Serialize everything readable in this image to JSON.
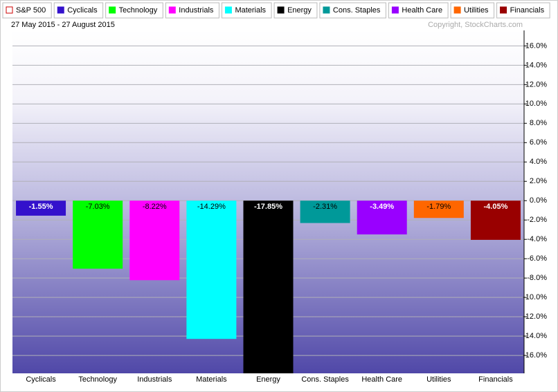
{
  "chart_data": {
    "type": "bar",
    "subtitle": "27 May 2015 - 27 August 2015",
    "credit": "Copyright, StockCharts.com",
    "benchmark": {
      "name": "S&P 500",
      "color": "#cc0000"
    },
    "categories": [
      "Cyclicals",
      "Technology",
      "Industrials",
      "Materials",
      "Energy",
      "Cons. Staples",
      "Health Care",
      "Utilities",
      "Financials"
    ],
    "values": [
      -1.55,
      -7.03,
      -8.22,
      -14.29,
      -17.85,
      -2.31,
      -3.49,
      -1.79,
      -4.05
    ],
    "value_labels": [
      "-1.55%",
      "-7.03%",
      "-8.22%",
      "-14.29%",
      "-17.85%",
      "-2.31%",
      "-3.49%",
      "-1.79%",
      "-4.05%"
    ],
    "colors": [
      "#3311cc",
      "#00ff00",
      "#ff00ff",
      "#00ffff",
      "#000000",
      "#009999",
      "#9900ff",
      "#ff6600",
      "#990000"
    ],
    "ylim": [
      -17.85,
      17.6
    ],
    "yticks": [
      {
        "value": 16,
        "label": "16.0%"
      },
      {
        "value": 14,
        "label": "14.0%"
      },
      {
        "value": 12,
        "label": "12.0%"
      },
      {
        "value": 10,
        "label": "10.0%"
      },
      {
        "value": 8,
        "label": "8.0%"
      },
      {
        "value": 6,
        "label": "6.0%"
      },
      {
        "value": 4,
        "label": "4.0%"
      },
      {
        "value": 2,
        "label": "2.0%"
      },
      {
        "value": 0,
        "label": "0.0%"
      },
      {
        "value": -2,
        "label": "-2.0%"
      },
      {
        "value": -4,
        "label": "-4.0%"
      },
      {
        "value": -6,
        "label": "-6.0%"
      },
      {
        "value": -8,
        "label": "-8.0%"
      },
      {
        "value": -10,
        "label": "-10.0%"
      },
      {
        "value": -12,
        "label": "-12.0%"
      },
      {
        "value": -14,
        "label": "-14.0%"
      },
      {
        "value": -16,
        "label": "-16.0%"
      }
    ],
    "grid": true,
    "y_axis_side": "right"
  }
}
